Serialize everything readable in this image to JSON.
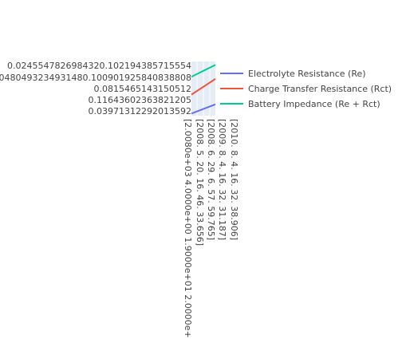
{
  "chart_data": {
    "type": "line",
    "title": "",
    "xlabel": "",
    "ylabel": "",
    "y_tick_labels": [
      "0.0245547826984320.102194385715554",
      "0.0480493234931480.100901925840838808",
      "0.0815465143150512",
      "0.11643602363821205",
      "0.03971312292013592"
    ],
    "x_tick_labels": [
      "[2.0080e+03 4.0000e+00 1.9000e+01 2.0000e+",
      "[2008.    5.   20.   16.   46.   33.656]",
      "[2008.    6.   29.    6.   57.   59.765]",
      "[2009.    8.    4.   16.   32.   31.187]",
      "[2010.    8.    4.   16.   32.   38.906]"
    ],
    "series": [
      {
        "name": "Electrolyte Resistance (Re)",
        "color": "#636efa",
        "values": [
          0.0397131229,
          0.06
        ]
      },
      {
        "name": "Charge Transfer Resistance (Rct)",
        "color": "#ef553b",
        "values": [
          0.0815465143,
          0.1164360236
        ]
      },
      {
        "name": "Battery Impedance (Re + Rct)",
        "color": "#00cc96",
        "values": [
          0.1211,
          0.1473
        ]
      }
    ],
    "ylim": [
      0.035,
      0.155
    ],
    "grid": true,
    "legend_placement": "right"
  }
}
